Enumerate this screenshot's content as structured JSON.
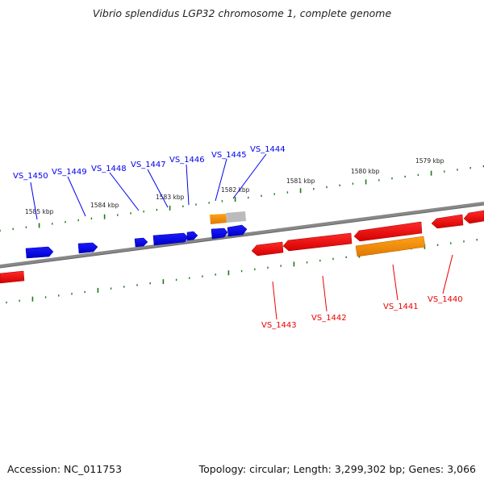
{
  "title": "Vibrio splendidus LGP32 chromosome 1, complete genome",
  "footer": {
    "accession": "Accession: NC_011753",
    "summary": "Topology: circular; Length: 3,299,302 bp; Genes: 3,066"
  },
  "colors": {
    "forward": "#0000ee",
    "reverse": "#ee0000",
    "pseudo": "#ff8c00",
    "backbone": "#808080",
    "tick": "#1a7a1a",
    "highlight": "#bbbbbb"
  },
  "scale": {
    "labels": [
      "1585 kbp",
      "1584 kbp",
      "1583 kbp",
      "1582 kbp",
      "1581 kbp",
      "1580 kbp",
      "1579 kbp"
    ]
  },
  "genes": {
    "forward_labels": [
      "VS_1450",
      "VS_1449",
      "VS_1448",
      "VS_1447",
      "VS_1446",
      "VS_1445",
      "VS_1444"
    ],
    "reverse_labels": [
      "VS_1443",
      "VS_1442",
      "VS_1441",
      "VS_1440"
    ]
  }
}
